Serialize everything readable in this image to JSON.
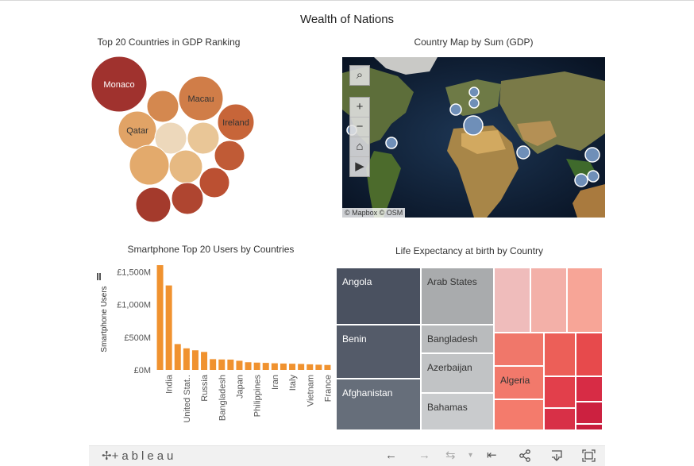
{
  "dashboard_title": "Wealth of Nations",
  "gdp_panel": {
    "title": "Top 20 Countries in GDP Ranking",
    "bubbles": [
      {
        "label": "Monaco",
        "color": "#a0322e"
      },
      {
        "label": "",
        "color": "#d4884f"
      },
      {
        "label": "Macau",
        "color": "#d07d48"
      },
      {
        "label": "Ireland",
        "color": "#c76539"
      },
      {
        "label": "Qatar",
        "color": "#e1a366"
      },
      {
        "label": "",
        "color": "#edd8bb"
      },
      {
        "label": "",
        "color": "#e9c697"
      },
      {
        "label": "",
        "color": "#c05b36"
      },
      {
        "label": "",
        "color": "#e3aa6c"
      },
      {
        "label": "",
        "color": "#e6b982"
      },
      {
        "label": "",
        "color": "#bb5032"
      },
      {
        "label": "",
        "color": "#a43a2c"
      },
      {
        "label": "",
        "color": "#af4530"
      }
    ]
  },
  "map_panel": {
    "title": "Country Map by Sum (GDP)",
    "controls": {
      "search": "search-icon",
      "zoom_in": "+",
      "zoom_out": "−",
      "home": "home-icon",
      "play": "play-icon"
    },
    "attribution": "© Mapbox  © OSM",
    "marker_color": "#6f8fb8"
  },
  "smartphone_panel": {
    "title": "Smartphone Top 20 Users by Countries",
    "chart_data": {
      "type": "bar",
      "title": "Smartphone Top 20 Users by Countries",
      "ylabel": "Smartphone Users",
      "ylim": [
        0,
        1600
      ],
      "yticks": [
        {
          "value": 0,
          "label": "£0M"
        },
        {
          "value": 500,
          "label": "£500M"
        },
        {
          "value": 1000,
          "label": "£1,000M"
        },
        {
          "value": 1500,
          "label": "£1,500M"
        }
      ],
      "categories": [
        "",
        "India",
        "",
        "United Stat..",
        "",
        "Russia",
        "",
        "Bangladesh",
        "",
        "Japan",
        "",
        "Philippines",
        "",
        "Iran",
        "",
        "Italy",
        "",
        "Vietnam",
        "",
        "France"
      ],
      "values": [
        1600,
        1290,
        395,
        330,
        300,
        275,
        165,
        160,
        158,
        140,
        118,
        112,
        108,
        102,
        98,
        95,
        92,
        86,
        80,
        76
      ],
      "color": "#f0922f"
    }
  },
  "life_panel": {
    "title": "Life Expectancy at birth by Country",
    "cells": [
      {
        "label": "Angola",
        "color": "#4a5160",
        "text_color": "#ffffff"
      },
      {
        "label": "Benin",
        "color": "#545b69",
        "text_color": "#ffffff"
      },
      {
        "label": "Afghanistan",
        "color": "#666e7a",
        "text_color": "#ffffff"
      },
      {
        "label": "Arab States",
        "color": "#a9abad",
        "text_color": "#333333"
      },
      {
        "label": "Bangladesh",
        "color": "#b9bbbd",
        "text_color": "#333333"
      },
      {
        "label": "Azerbaijan",
        "color": "#c1c3c5",
        "text_color": "#333333"
      },
      {
        "label": "Bahamas",
        "color": "#c9cbcd",
        "text_color": "#333333"
      },
      {
        "label": "",
        "color": "#efbcbb",
        "text_color": "#333333"
      },
      {
        "label": "",
        "color": "#f3b0a8",
        "text_color": "#333333"
      },
      {
        "label": "",
        "color": "#f7a597",
        "text_color": "#333333"
      },
      {
        "label": "",
        "color": "#f0776a",
        "text_color": "#333333"
      },
      {
        "label": "",
        "color": "#ec5f58",
        "text_color": "#333333"
      },
      {
        "label": "",
        "color": "#e74a4c",
        "text_color": "#333333"
      },
      {
        "label": "Algeria",
        "color": "#f2796b",
        "text_color": "#333333"
      },
      {
        "label": "",
        "color": "#e23f4b",
        "text_color": "#333333"
      },
      {
        "label": "",
        "color": "#d72c45",
        "text_color": "#333333"
      },
      {
        "label": "",
        "color": "#f47b6c",
        "text_color": "#333333"
      },
      {
        "label": "",
        "color": "#d83047",
        "text_color": "#333333"
      },
      {
        "label": "",
        "color": "#cc2140",
        "text_color": "#333333"
      },
      {
        "label": "",
        "color": "#c81d3d",
        "text_color": "#333333"
      }
    ]
  },
  "toolbar": {
    "logo": "+ableau",
    "logo_mark": "✢",
    "undo": "←",
    "redo": "→",
    "revert": "⇆",
    "revert_caret": "▾",
    "reset": "⇤",
    "share": "share-icon",
    "download": "download-icon",
    "fullscreen": "fullscreen-icon"
  }
}
